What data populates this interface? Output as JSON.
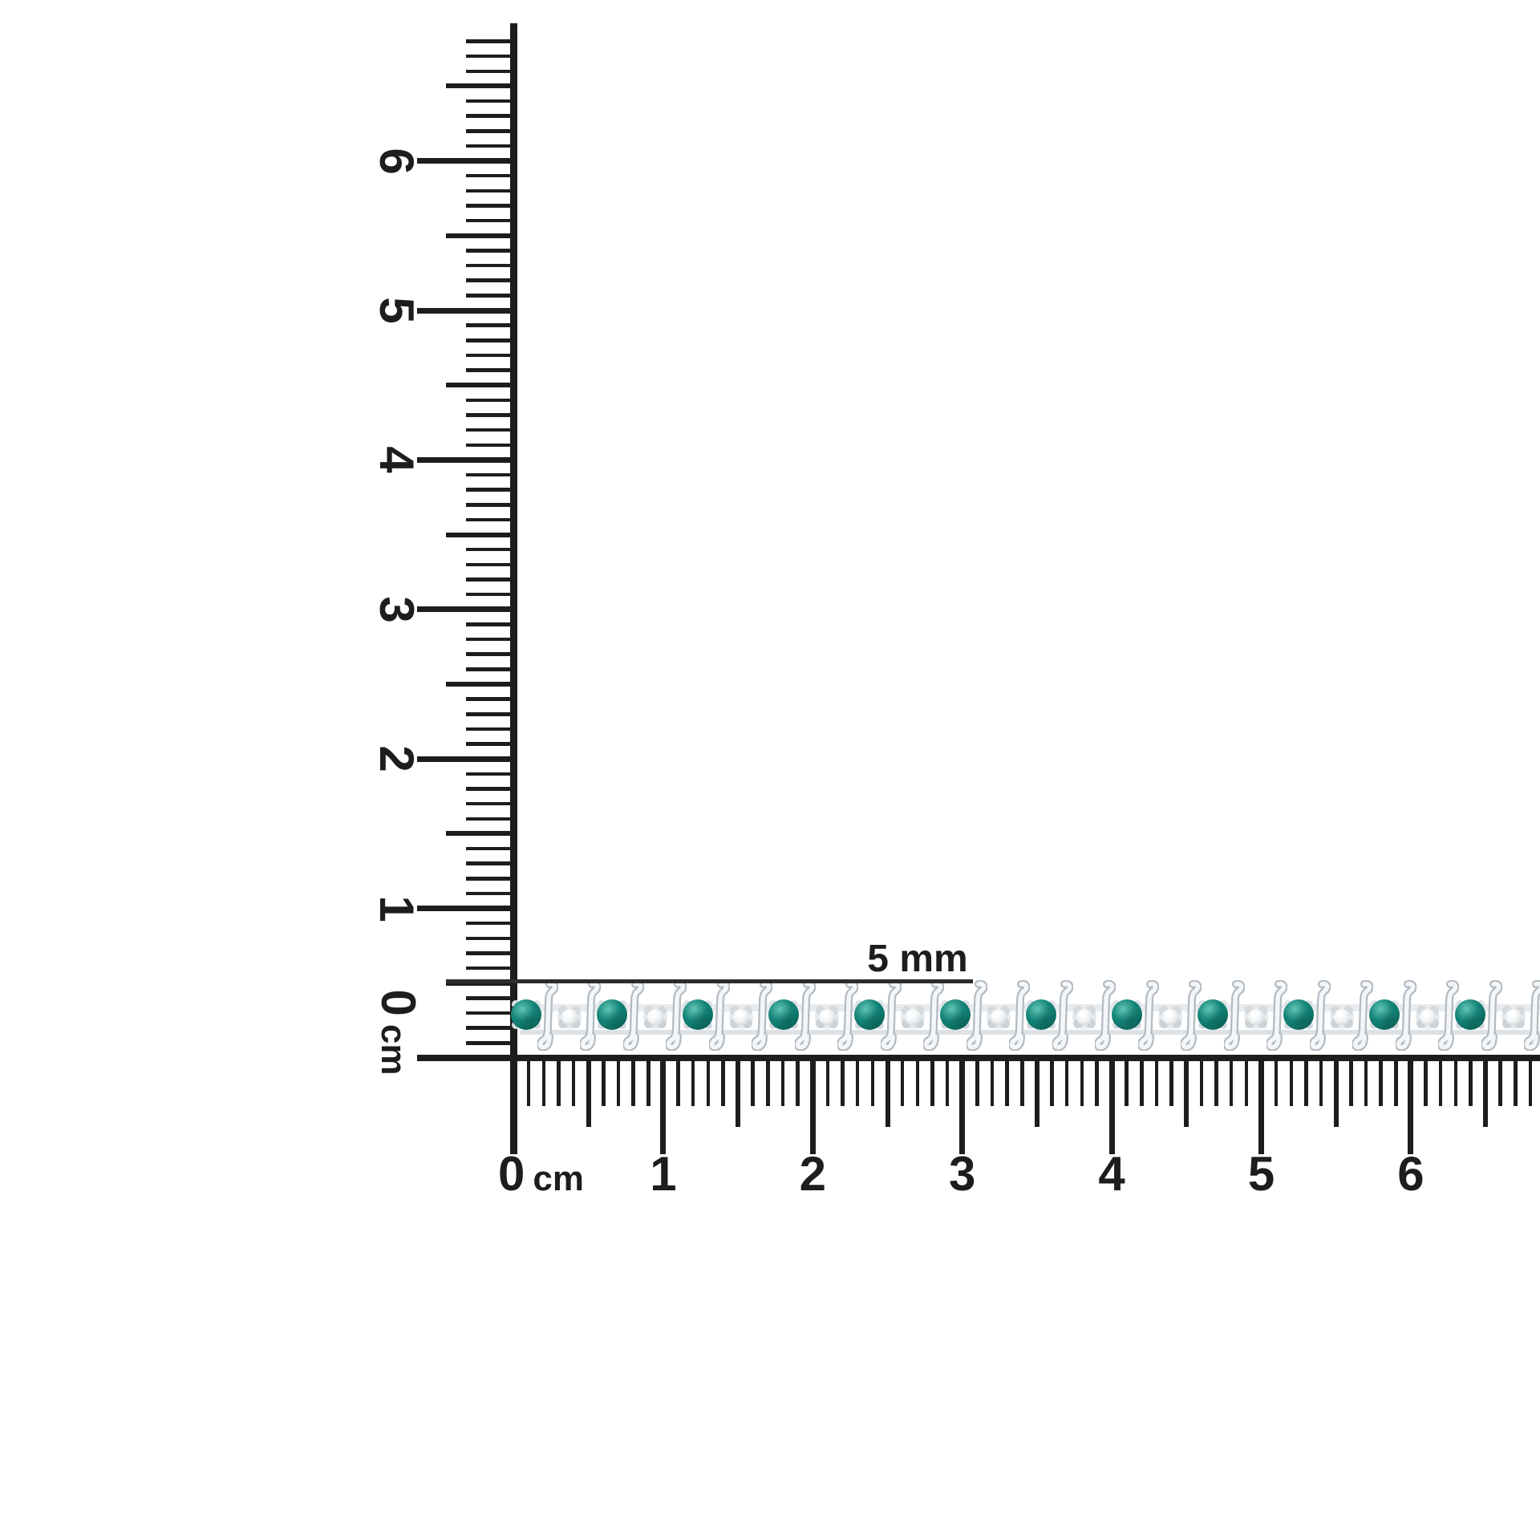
{
  "scene": {
    "description": "emerald and diamond S-link bracelet photographed against centimeter rulers"
  },
  "annotation": {
    "text": "5 mm"
  },
  "vertical_ruler": {
    "zero": "0",
    "unit": "cm",
    "numbers": [
      "1",
      "2",
      "3",
      "4",
      "5",
      "6"
    ]
  },
  "horizontal_ruler": {
    "zero": "0",
    "unit": "cm",
    "numbers": [
      "1",
      "2",
      "3",
      "4",
      "5",
      "6"
    ]
  },
  "bracelet": {
    "emeralds_visible": 12,
    "diamonds_visible": 12,
    "emerald_color": "#14857a",
    "diamond_color": "#f0f2f3",
    "metal_color": "#dfe4e8"
  },
  "colors": {
    "ruler_ink": "#1d1d1d",
    "background": "#ffffff"
  }
}
